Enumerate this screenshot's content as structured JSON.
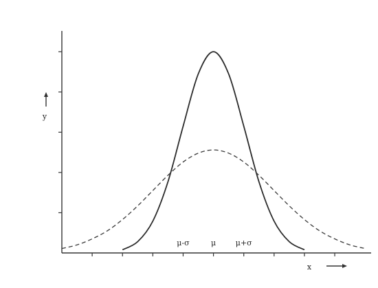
{
  "chart_data": {
    "type": "line",
    "axis_labels": {
      "x": "x",
      "y": "y"
    },
    "x": [
      -5,
      -4.5,
      -4,
      -3.5,
      -3,
      -2.5,
      -2,
      -1.5,
      -1,
      -0.5,
      0,
      0.5,
      1,
      1.5,
      2,
      2.5,
      3,
      3.5,
      4,
      4.5,
      5
    ],
    "series": [
      {
        "color": "#2a2a2a",
        "dash": false,
        "values": [
          null,
          null,
          null,
          null,
          0.08,
          0.28,
          0.79,
          1.77,
          3.15,
          4.45,
          5,
          4.45,
          3.15,
          1.77,
          0.79,
          0.28,
          0.08,
          null,
          null,
          null,
          null
        ]
      },
      {
        "color": "#3a3a3a",
        "dash": true,
        "values": [
          0.11,
          0.2,
          0.35,
          0.55,
          0.83,
          1.17,
          1.55,
          1.93,
          2.26,
          2.48,
          2.56,
          2.48,
          2.26,
          1.93,
          1.55,
          1.17,
          0.83,
          0.55,
          0.35,
          0.2,
          0.11
        ]
      }
    ],
    "annotations": [
      {
        "text": "μ-σ",
        "x": -1
      },
      {
        "text": "μ",
        "x": 0
      },
      {
        "text": "μ+σ",
        "x": 1
      }
    ],
    "xlim": [
      -5,
      5.2
    ],
    "ylim": [
      0,
      5.5
    ],
    "xticks": [
      -4,
      -3,
      -2,
      -1,
      0,
      1,
      2,
      3,
      4
    ],
    "yticks": [
      1,
      2,
      3,
      4,
      5
    ],
    "grid": false
  }
}
